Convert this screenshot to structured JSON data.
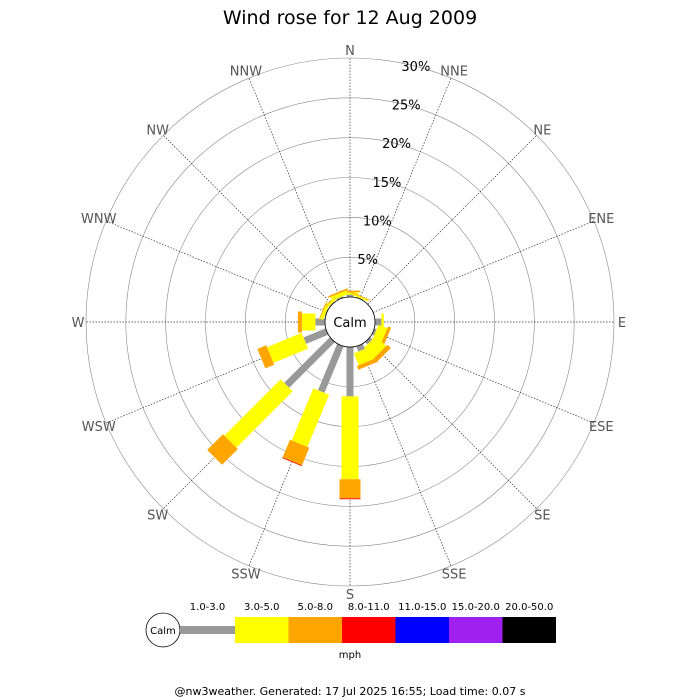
{
  "chart_data": {
    "type": "wind-rose",
    "title": "Wind rose for 12 Aug 2009",
    "directions": [
      "N",
      "NNE",
      "NE",
      "ENE",
      "E",
      "ESE",
      "SE",
      "SSE",
      "S",
      "SSW",
      "SW",
      "WSW",
      "W",
      "WNW",
      "NW",
      "NNW"
    ],
    "radial_ticks": [
      "5%",
      "10%",
      "15%",
      "20%",
      "25%",
      "30%"
    ],
    "radial_max_percent": 30,
    "calm_label": "Calm",
    "unit": "mph",
    "speed_bins": [
      {
        "label": "1.0-3.0",
        "color": "#999999"
      },
      {
        "label": "3.0-5.0",
        "color": "#ffff00"
      },
      {
        "label": "5.0-8.0",
        "color": "#ffa500"
      },
      {
        "label": "8.0-11.0",
        "color": "#ff0000"
      },
      {
        "label": "11.0-15.0",
        "color": "#0000ff"
      },
      {
        "label": "15.0-20.0",
        "color": "#a020f0"
      },
      {
        "label": "20.0-50.0",
        "color": "#000000"
      }
    ],
    "series_percent_by_direction": {
      "N": [
        0.3,
        0.3,
        0.2,
        0,
        0,
        0,
        0
      ],
      "NNE": [
        0.1,
        0.2,
        0.1,
        0,
        0,
        0,
        0
      ],
      "NE": [
        0,
        0,
        0,
        0,
        0,
        0,
        0
      ],
      "ENE": [
        0,
        0,
        0,
        0,
        0,
        0,
        0
      ],
      "E": [
        0.8,
        0.3,
        0,
        0,
        0,
        0,
        0
      ],
      "ESE": [
        0.3,
        1.2,
        0.4,
        0,
        0,
        0,
        0
      ],
      "SE": [
        0.4,
        1.8,
        0.6,
        0,
        0,
        0,
        0
      ],
      "SSE": [
        0.7,
        1.6,
        0.5,
        0,
        0,
        0,
        0
      ],
      "S": [
        6.2,
        10.4,
        2.4,
        0.1,
        0,
        0,
        0
      ],
      "SSW": [
        6.3,
        7.1,
        2.4,
        0.1,
        0,
        0,
        0
      ],
      "SW": [
        8.1,
        10.0,
        2.8,
        0,
        0,
        0,
        0
      ],
      "WSW": [
        3.0,
        4.7,
        1.2,
        0,
        0,
        0,
        0
      ],
      "W": [
        1.2,
        1.7,
        0.5,
        0,
        0,
        0,
        0
      ],
      "WNW": [
        0.1,
        0.4,
        0.1,
        0,
        0,
        0,
        0
      ],
      "NW": [
        0.1,
        0.3,
        0.1,
        0,
        0,
        0,
        0
      ],
      "NNW": [
        0.2,
        0.5,
        0.2,
        0,
        0,
        0,
        0
      ]
    },
    "footer": "@nw3weather. Generated: 17 Jul 2025 16:55; Load time: 0.07 s"
  }
}
